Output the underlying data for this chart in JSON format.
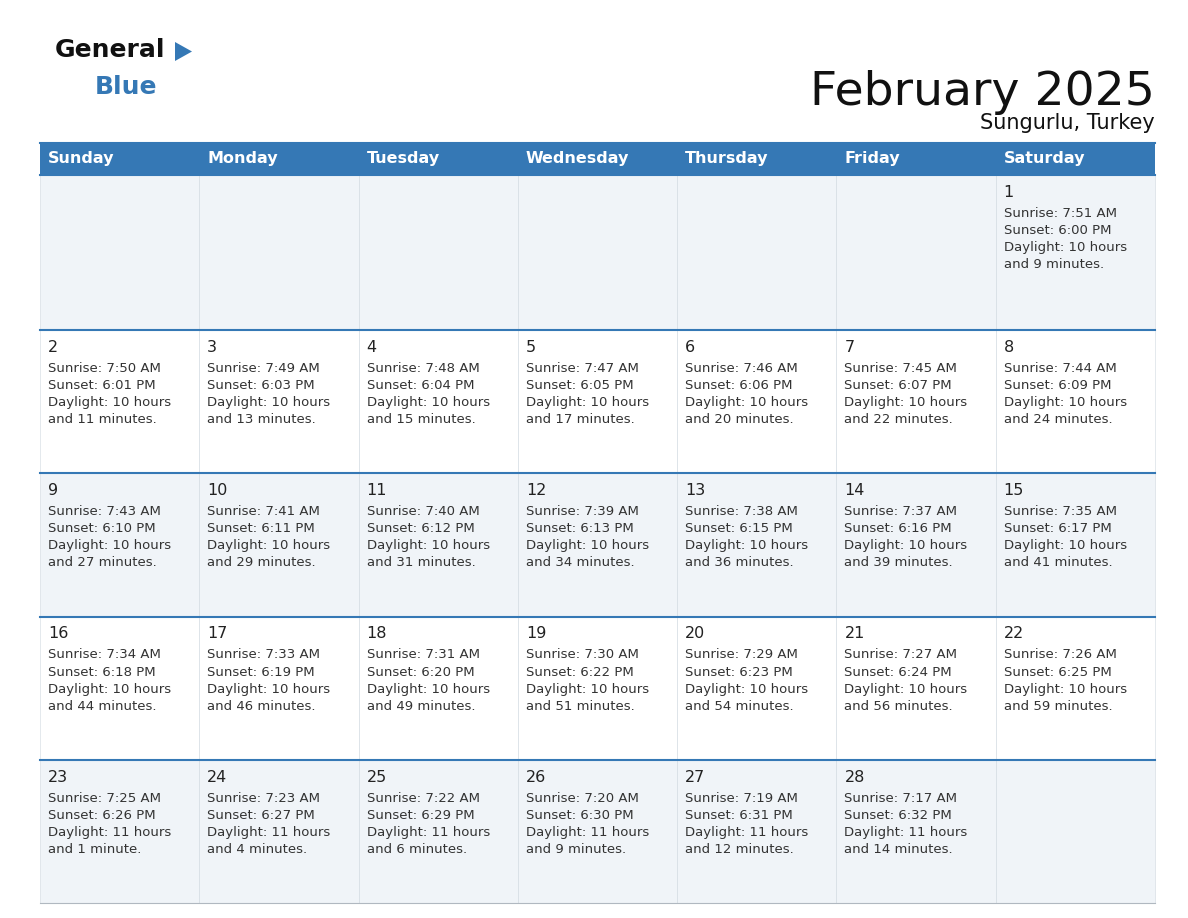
{
  "title": "February 2025",
  "subtitle": "Sungurlu, Turkey",
  "days_of_week": [
    "Sunday",
    "Monday",
    "Tuesday",
    "Wednesday",
    "Thursday",
    "Friday",
    "Saturday"
  ],
  "header_bg": "#3578b5",
  "header_text": "#ffffff",
  "cell_bg_odd": "#f0f4f8",
  "cell_bg_even": "#ffffff",
  "divider_color": "#3578b5",
  "day_number_color": "#222222",
  "text_color": "#333333",
  "logo_text_color": "#111111",
  "logo_blue_color": "#3578b5",
  "title_color": "#111111",
  "subtitle_color": "#111111",
  "calendar_data": [
    [
      null,
      null,
      null,
      null,
      null,
      null,
      {
        "day": "1",
        "sunrise": "Sunrise: 7:51 AM",
        "sunset": "Sunset: 6:00 PM",
        "daylight_line1": "Daylight: 10 hours",
        "daylight_line2": "and 9 minutes."
      }
    ],
    [
      {
        "day": "2",
        "sunrise": "Sunrise: 7:50 AM",
        "sunset": "Sunset: 6:01 PM",
        "daylight_line1": "Daylight: 10 hours",
        "daylight_line2": "and 11 minutes."
      },
      {
        "day": "3",
        "sunrise": "Sunrise: 7:49 AM",
        "sunset": "Sunset: 6:03 PM",
        "daylight_line1": "Daylight: 10 hours",
        "daylight_line2": "and 13 minutes."
      },
      {
        "day": "4",
        "sunrise": "Sunrise: 7:48 AM",
        "sunset": "Sunset: 6:04 PM",
        "daylight_line1": "Daylight: 10 hours",
        "daylight_line2": "and 15 minutes."
      },
      {
        "day": "5",
        "sunrise": "Sunrise: 7:47 AM",
        "sunset": "Sunset: 6:05 PM",
        "daylight_line1": "Daylight: 10 hours",
        "daylight_line2": "and 17 minutes."
      },
      {
        "day": "6",
        "sunrise": "Sunrise: 7:46 AM",
        "sunset": "Sunset: 6:06 PM",
        "daylight_line1": "Daylight: 10 hours",
        "daylight_line2": "and 20 minutes."
      },
      {
        "day": "7",
        "sunrise": "Sunrise: 7:45 AM",
        "sunset": "Sunset: 6:07 PM",
        "daylight_line1": "Daylight: 10 hours",
        "daylight_line2": "and 22 minutes."
      },
      {
        "day": "8",
        "sunrise": "Sunrise: 7:44 AM",
        "sunset": "Sunset: 6:09 PM",
        "daylight_line1": "Daylight: 10 hours",
        "daylight_line2": "and 24 minutes."
      }
    ],
    [
      {
        "day": "9",
        "sunrise": "Sunrise: 7:43 AM",
        "sunset": "Sunset: 6:10 PM",
        "daylight_line1": "Daylight: 10 hours",
        "daylight_line2": "and 27 minutes."
      },
      {
        "day": "10",
        "sunrise": "Sunrise: 7:41 AM",
        "sunset": "Sunset: 6:11 PM",
        "daylight_line1": "Daylight: 10 hours",
        "daylight_line2": "and 29 minutes."
      },
      {
        "day": "11",
        "sunrise": "Sunrise: 7:40 AM",
        "sunset": "Sunset: 6:12 PM",
        "daylight_line1": "Daylight: 10 hours",
        "daylight_line2": "and 31 minutes."
      },
      {
        "day": "12",
        "sunrise": "Sunrise: 7:39 AM",
        "sunset": "Sunset: 6:13 PM",
        "daylight_line1": "Daylight: 10 hours",
        "daylight_line2": "and 34 minutes."
      },
      {
        "day": "13",
        "sunrise": "Sunrise: 7:38 AM",
        "sunset": "Sunset: 6:15 PM",
        "daylight_line1": "Daylight: 10 hours",
        "daylight_line2": "and 36 minutes."
      },
      {
        "day": "14",
        "sunrise": "Sunrise: 7:37 AM",
        "sunset": "Sunset: 6:16 PM",
        "daylight_line1": "Daylight: 10 hours",
        "daylight_line2": "and 39 minutes."
      },
      {
        "day": "15",
        "sunrise": "Sunrise: 7:35 AM",
        "sunset": "Sunset: 6:17 PM",
        "daylight_line1": "Daylight: 10 hours",
        "daylight_line2": "and 41 minutes."
      }
    ],
    [
      {
        "day": "16",
        "sunrise": "Sunrise: 7:34 AM",
        "sunset": "Sunset: 6:18 PM",
        "daylight_line1": "Daylight: 10 hours",
        "daylight_line2": "and 44 minutes."
      },
      {
        "day": "17",
        "sunrise": "Sunrise: 7:33 AM",
        "sunset": "Sunset: 6:19 PM",
        "daylight_line1": "Daylight: 10 hours",
        "daylight_line2": "and 46 minutes."
      },
      {
        "day": "18",
        "sunrise": "Sunrise: 7:31 AM",
        "sunset": "Sunset: 6:20 PM",
        "daylight_line1": "Daylight: 10 hours",
        "daylight_line2": "and 49 minutes."
      },
      {
        "day": "19",
        "sunrise": "Sunrise: 7:30 AM",
        "sunset": "Sunset: 6:22 PM",
        "daylight_line1": "Daylight: 10 hours",
        "daylight_line2": "and 51 minutes."
      },
      {
        "day": "20",
        "sunrise": "Sunrise: 7:29 AM",
        "sunset": "Sunset: 6:23 PM",
        "daylight_line1": "Daylight: 10 hours",
        "daylight_line2": "and 54 minutes."
      },
      {
        "day": "21",
        "sunrise": "Sunrise: 7:27 AM",
        "sunset": "Sunset: 6:24 PM",
        "daylight_line1": "Daylight: 10 hours",
        "daylight_line2": "and 56 minutes."
      },
      {
        "day": "22",
        "sunrise": "Sunrise: 7:26 AM",
        "sunset": "Sunset: 6:25 PM",
        "daylight_line1": "Daylight: 10 hours",
        "daylight_line2": "and 59 minutes."
      }
    ],
    [
      {
        "day": "23",
        "sunrise": "Sunrise: 7:25 AM",
        "sunset": "Sunset: 6:26 PM",
        "daylight_line1": "Daylight: 11 hours",
        "daylight_line2": "and 1 minute."
      },
      {
        "day": "24",
        "sunrise": "Sunrise: 7:23 AM",
        "sunset": "Sunset: 6:27 PM",
        "daylight_line1": "Daylight: 11 hours",
        "daylight_line2": "and 4 minutes."
      },
      {
        "day": "25",
        "sunrise": "Sunrise: 7:22 AM",
        "sunset": "Sunset: 6:29 PM",
        "daylight_line1": "Daylight: 11 hours",
        "daylight_line2": "and 6 minutes."
      },
      {
        "day": "26",
        "sunrise": "Sunrise: 7:20 AM",
        "sunset": "Sunset: 6:30 PM",
        "daylight_line1": "Daylight: 11 hours",
        "daylight_line2": "and 9 minutes."
      },
      {
        "day": "27",
        "sunrise": "Sunrise: 7:19 AM",
        "sunset": "Sunset: 6:31 PM",
        "daylight_line1": "Daylight: 11 hours",
        "daylight_line2": "and 12 minutes."
      },
      {
        "day": "28",
        "sunrise": "Sunrise: 7:17 AM",
        "sunset": "Sunset: 6:32 PM",
        "daylight_line1": "Daylight: 11 hours",
        "daylight_line2": "and 14 minutes."
      },
      null
    ]
  ]
}
